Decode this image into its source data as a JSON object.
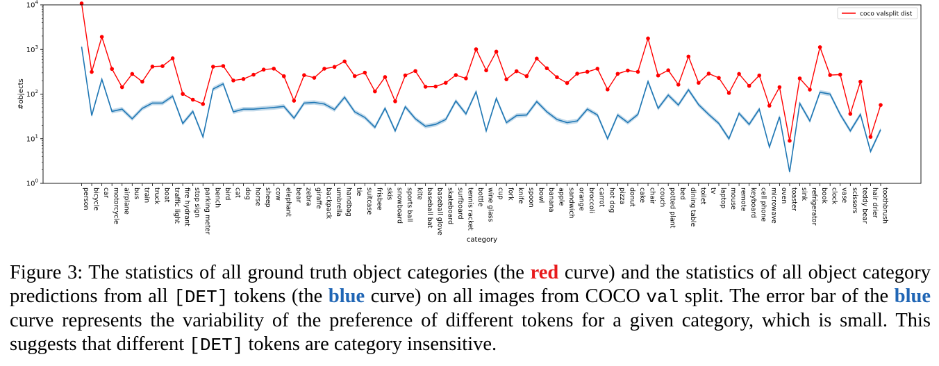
{
  "chart_data": {
    "type": "line",
    "yscale": "log",
    "ylim": [
      1,
      10000
    ],
    "ylabel": "#objects",
    "xlabel": "category",
    "grid": false,
    "legend_location": "upper right",
    "y_ticks": [
      {
        "value": 1,
        "base": "10",
        "exp": "0"
      },
      {
        "value": 10,
        "base": "10",
        "exp": "1"
      },
      {
        "value": 100,
        "base": "10",
        "exp": "2"
      },
      {
        "value": 1000,
        "base": "10",
        "exp": "3"
      },
      {
        "value": 10000,
        "base": "10",
        "exp": "4"
      }
    ],
    "categories": [
      "person",
      "bicycle",
      "car",
      "motorcycle",
      "airplane",
      "bus",
      "train",
      "truck",
      "boat",
      "traffic light",
      "fire hydrant",
      "stop sign",
      "parking meter",
      "bench",
      "bird",
      "cat",
      "dog",
      "horse",
      "sheep",
      "cow",
      "elephant",
      "bear",
      "zebra",
      "giraffe",
      "backpack",
      "umbrella",
      "handbag",
      "tie",
      "suitcase",
      "frisbee",
      "skis",
      "snowboard",
      "sports ball",
      "kite",
      "baseball bat",
      "baseball glove",
      "skateboard",
      "surfboard",
      "tennis racket",
      "bottle",
      "wine glass",
      "cup",
      "fork",
      "knife",
      "spoon",
      "bowl",
      "banana",
      "apple",
      "sandwich",
      "orange",
      "broccoli",
      "carrot",
      "hot dog",
      "pizza",
      "donut",
      "cake",
      "chair",
      "couch",
      "potted plant",
      "bed",
      "dining table",
      "toilet",
      "tv",
      "laptop",
      "mouse",
      "remote",
      "keyboard",
      "cell phone",
      "microwave",
      "oven",
      "toaster",
      "sink",
      "refrigerator",
      "book",
      "clock",
      "vase",
      "scissors",
      "teddy bear",
      "hair drier",
      "toothbrush"
    ],
    "series": [
      {
        "name": "coco valsplit dist",
        "color": "#ff0000",
        "marker": "circle",
        "values": [
          10777,
          314,
          1918,
          367,
          143,
          283,
          190,
          414,
          424,
          634,
          101,
          75,
          60,
          411,
          427,
          202,
          218,
          272,
          354,
          372,
          252,
          71,
          266,
          232,
          371,
          407,
          540,
          254,
          303,
          115,
          241,
          69,
          263,
          329,
          146,
          148,
          179,
          267,
          225,
          1013,
          341,
          895,
          215,
          326,
          253,
          626,
          379,
          239,
          177,
          287,
          316,
          371,
          127,
          285,
          338,
          316,
          1771,
          261,
          342,
          163,
          695,
          179,
          288,
          231,
          106,
          283,
          153,
          262,
          55,
          143,
          9,
          225,
          126,
          1129,
          267,
          274,
          36,
          190,
          11,
          57
        ]
      },
      {
        "color": "#1f77b4",
        "error_band": true,
        "values": [
          1150,
          33,
          215,
          41,
          46,
          28,
          48,
          63,
          63,
          90,
          22,
          41,
          11,
          130,
          170,
          40,
          46,
          46,
          48,
          50,
          53,
          29,
          63,
          65,
          60,
          45,
          85,
          40,
          30,
          18,
          48,
          15,
          52,
          28,
          19,
          21,
          27,
          70,
          36,
          113,
          15,
          80,
          23,
          33,
          34,
          68,
          40,
          27,
          23,
          25,
          46,
          34,
          10,
          34,
          23,
          35,
          192,
          48,
          95,
          57,
          125,
          58,
          35,
          22,
          10,
          37,
          21,
          46,
          6.5,
          31,
          1.8,
          62,
          25,
          110,
          100,
          35,
          15,
          35,
          5.2,
          16
        ]
      }
    ]
  },
  "caption": {
    "p1": "Figure 3: The statistics of all ground truth object categories (the ",
    "red": "red",
    "p2": " curve) and the statistics of all object category predictions from all ",
    "det1": "[DET]",
    "p3": " tokens (the ",
    "blue1": "blue",
    "p4": " curve) on all images from COCO ",
    "val": "val",
    "p5": " split. The error bar of the ",
    "blue2": "blue",
    "p6": " curve represents the variability of the preference of different tokens for a given category, which is small. This suggests that different ",
    "det2": "[DET]",
    "p7": " tokens are category insensitive."
  }
}
